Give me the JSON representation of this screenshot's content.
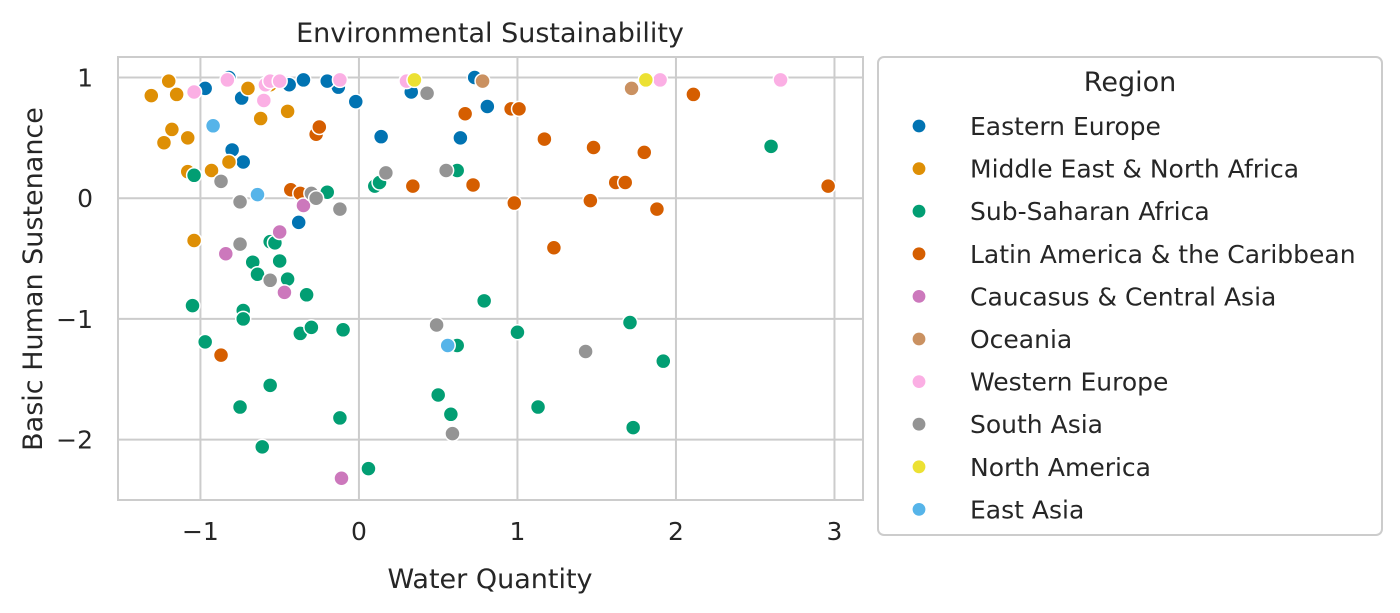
{
  "chart_data": {
    "type": "scatter",
    "title": "Environmental Sustainability",
    "xlabel": "Water Quantity",
    "ylabel": "Basic Human Sustenance",
    "xlim": [
      -1.52,
      3.18
    ],
    "ylim": [
      -2.5,
      1.17
    ],
    "xticks": [
      -1,
      0,
      1,
      2,
      3
    ],
    "xtick_labels": [
      "−1",
      "0",
      "1",
      "2",
      "3"
    ],
    "yticks": [
      -2,
      -1,
      0,
      1
    ],
    "ytick_labels": [
      "−2",
      "−1",
      "0",
      "1"
    ],
    "grid": true,
    "legend": {
      "title": "Region",
      "placement": "outside-right"
    },
    "series": [
      {
        "name": "Eastern Europe",
        "color": "#0173b2",
        "points": [
          [
            -0.97,
            0.91
          ],
          [
            -0.82,
            1.0
          ],
          [
            -0.74,
            0.83
          ],
          [
            -0.8,
            0.4
          ],
          [
            -0.73,
            0.3
          ],
          [
            -0.44,
            0.94
          ],
          [
            -0.35,
            0.98
          ],
          [
            -0.13,
            0.92
          ],
          [
            -0.2,
            0.97
          ],
          [
            -0.02,
            0.8
          ],
          [
            0.33,
            0.88
          ],
          [
            0.14,
            0.51
          ],
          [
            0.73,
            1.0
          ],
          [
            0.81,
            0.76
          ],
          [
            0.64,
            0.5
          ],
          [
            -0.38,
            -0.2
          ]
        ]
      },
      {
        "name": "Middle East & North Africa",
        "color": "#de8f05",
        "points": [
          [
            -1.31,
            0.85
          ],
          [
            -1.2,
            0.97
          ],
          [
            -1.15,
            0.86
          ],
          [
            -1.18,
            0.57
          ],
          [
            -1.23,
            0.46
          ],
          [
            -1.08,
            0.5
          ],
          [
            -1.08,
            0.22
          ],
          [
            -1.04,
            -0.35
          ],
          [
            -0.93,
            0.23
          ],
          [
            -0.82,
            0.3
          ],
          [
            -0.7,
            0.91
          ],
          [
            -0.62,
            0.66
          ],
          [
            -0.56,
            0.94
          ],
          [
            -0.45,
            0.72
          ]
        ]
      },
      {
        "name": "Sub-Saharan Africa",
        "color": "#029e73",
        "points": [
          [
            -1.05,
            -0.89
          ],
          [
            -0.97,
            -1.19
          ],
          [
            -0.75,
            -1.73
          ],
          [
            -0.73,
            -0.93
          ],
          [
            -0.73,
            -1.0
          ],
          [
            -0.67,
            -0.53
          ],
          [
            -0.64,
            -0.63
          ],
          [
            -0.61,
            -2.06
          ],
          [
            -0.56,
            -0.36
          ],
          [
            -0.56,
            -1.55
          ],
          [
            -0.53,
            -0.37
          ],
          [
            -0.5,
            -0.52
          ],
          [
            -0.45,
            -0.67
          ],
          [
            -0.37,
            -1.12
          ],
          [
            -0.33,
            -0.8
          ],
          [
            -0.3,
            -1.07
          ],
          [
            -0.2,
            0.05
          ],
          [
            -0.12,
            -1.82
          ],
          [
            -0.1,
            -1.09
          ],
          [
            0.06,
            -2.24
          ],
          [
            0.1,
            0.1
          ],
          [
            0.13,
            0.13
          ],
          [
            0.5,
            -1.63
          ],
          [
            0.58,
            -1.79
          ],
          [
            0.62,
            0.23
          ],
          [
            0.62,
            -1.22
          ],
          [
            0.79,
            -0.85
          ],
          [
            1.0,
            -1.11
          ],
          [
            1.13,
            -1.73
          ],
          [
            1.71,
            -1.03
          ],
          [
            1.73,
            -1.9
          ],
          [
            1.92,
            -1.35
          ],
          [
            2.6,
            0.43
          ],
          [
            -1.04,
            0.19
          ]
        ]
      },
      {
        "name": "Latin America & the Caribbean",
        "color": "#d55e00",
        "points": [
          [
            -0.87,
            -1.3
          ],
          [
            -0.43,
            0.07
          ],
          [
            -0.37,
            0.04
          ],
          [
            -0.27,
            0.53
          ],
          [
            -0.25,
            0.59
          ],
          [
            0.34,
            0.1
          ],
          [
            0.67,
            0.7
          ],
          [
            0.72,
            0.11
          ],
          [
            0.96,
            0.74
          ],
          [
            0.98,
            -0.04
          ],
          [
            1.01,
            0.74
          ],
          [
            1.17,
            0.49
          ],
          [
            1.23,
            -0.41
          ],
          [
            1.46,
            -0.02
          ],
          [
            1.48,
            0.42
          ],
          [
            1.62,
            0.13
          ],
          [
            1.68,
            0.13
          ],
          [
            1.8,
            0.38
          ],
          [
            1.88,
            -0.09
          ],
          [
            2.11,
            0.86
          ],
          [
            2.96,
            0.1
          ]
        ]
      },
      {
        "name": "Caucasus & Central Asia",
        "color": "#cc78bc",
        "points": [
          [
            -0.84,
            -0.46
          ],
          [
            -0.5,
            -0.28
          ],
          [
            -0.47,
            -0.78
          ],
          [
            -0.35,
            -0.06
          ],
          [
            -0.11,
            -2.32
          ]
        ]
      },
      {
        "name": "Oceania",
        "color": "#ca9161",
        "points": [
          [
            0.78,
            0.97
          ],
          [
            1.72,
            0.91
          ]
        ]
      },
      {
        "name": "Western Europe",
        "color": "#fbafe4",
        "points": [
          [
            -1.04,
            0.88
          ],
          [
            -0.83,
            0.98
          ],
          [
            -0.6,
            0.81
          ],
          [
            -0.59,
            0.94
          ],
          [
            -0.56,
            0.97
          ],
          [
            -0.5,
            0.97
          ],
          [
            -0.12,
            0.98
          ],
          [
            0.3,
            0.97
          ],
          [
            1.9,
            0.98
          ],
          [
            2.66,
            0.98
          ]
        ]
      },
      {
        "name": "South Asia",
        "color": "#949494",
        "points": [
          [
            -0.87,
            0.14
          ],
          [
            -0.75,
            -0.03
          ],
          [
            -0.75,
            -0.38
          ],
          [
            -0.56,
            -0.68
          ],
          [
            -0.3,
            0.04
          ],
          [
            -0.27,
            0.0
          ],
          [
            -0.12,
            -0.09
          ],
          [
            0.17,
            0.21
          ],
          [
            0.43,
            0.87
          ],
          [
            0.49,
            -1.05
          ],
          [
            0.55,
            0.23
          ],
          [
            0.59,
            -1.95
          ],
          [
            1.43,
            -1.27
          ]
        ]
      },
      {
        "name": "North America",
        "color": "#ece133",
        "points": [
          [
            0.35,
            0.98
          ],
          [
            1.81,
            0.98
          ]
        ]
      },
      {
        "name": "East Asia",
        "color": "#56b4e9",
        "points": [
          [
            -0.92,
            0.6
          ],
          [
            -0.64,
            0.03
          ],
          [
            0.56,
            -1.22
          ]
        ]
      }
    ]
  }
}
